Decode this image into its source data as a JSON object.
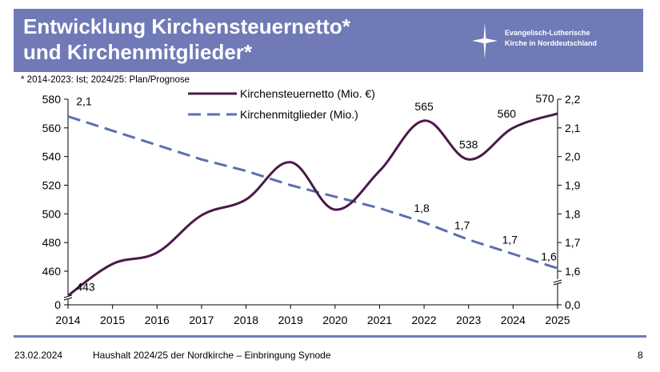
{
  "header": {
    "title_line1": "Entwicklung Kirchensteuernetto*",
    "title_line2": "und Kirchenmitglieder*",
    "org_line1": "Evangelisch-Lutherische",
    "org_line2": "Kirche in Norddeutschland",
    "logo_icon": "cross-star-icon",
    "background": "#6f7ab7"
  },
  "note": "* 2014-2023: Ist;  2024/25: Plan/Prognose",
  "footer": {
    "date": "23.02.2024",
    "title": "Haushalt 2024/25 der Nordkirche – Einbringung Synode",
    "page": "8"
  },
  "chart_data": {
    "type": "line",
    "x": [
      "2014",
      "2015",
      "2016",
      "2017",
      "2018",
      "2019",
      "2020",
      "2021",
      "2022",
      "2023",
      "2024",
      "2025"
    ],
    "left_axis": {
      "ticks": [
        "580",
        "560",
        "540",
        "520",
        "500",
        "480",
        "460",
        "0"
      ],
      "ylim": [
        460,
        580
      ],
      "broken": true
    },
    "right_axis": {
      "ticks": [
        "2,2",
        "2,1",
        "2,0",
        "1,9",
        "1,8",
        "1,7",
        "1,6",
        "0,0"
      ],
      "ylim": [
        1.6,
        2.2
      ],
      "broken": true
    },
    "grid": false,
    "legend_position": "top-center",
    "series": [
      {
        "name": "Kirchensteuernetto (Mio. €)",
        "axis": "left",
        "color": "#4a1a4a",
        "style": "solid",
        "values": [
          443,
          465,
          473,
          499,
          510,
          536,
          503,
          530,
          565,
          538,
          560,
          570
        ],
        "labels": {
          "0": "443",
          "8": "565",
          "9": "538",
          "10": "560",
          "11": "570"
        }
      },
      {
        "name": "Kirchenmitglieder (Mio.)",
        "axis": "right",
        "color": "#5b6fb0",
        "style": "dashed",
        "values": [
          2.14,
          2.09,
          2.04,
          1.99,
          1.95,
          1.9,
          1.86,
          1.82,
          1.77,
          1.71,
          1.66,
          1.61
        ],
        "labels": {
          "0": "2,1",
          "8": "1,8",
          "9": "1,7",
          "10": "1,7",
          "11": "1,6"
        }
      }
    ]
  }
}
